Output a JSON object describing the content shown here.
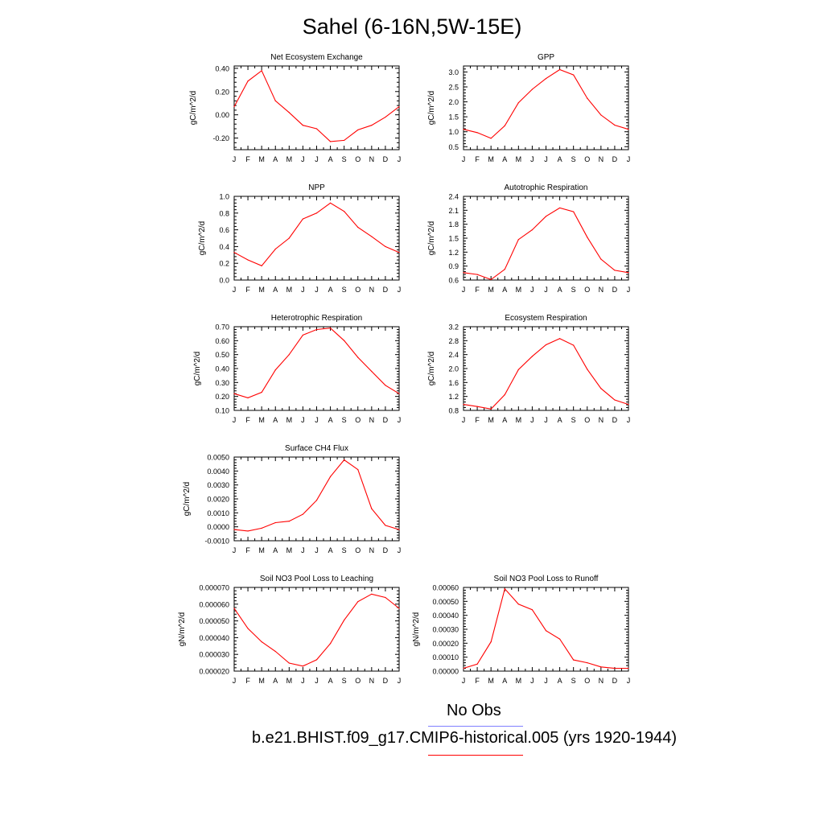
{
  "title": "Sahel (6-16N,5W-15E)",
  "legend": [
    {
      "label": "No Obs",
      "color": "#8080ff"
    },
    {
      "label": "b.e21.BHIST.f09_g17.CMIP6-historical.005 (yrs 1920-1944)",
      "color": "#ff0000"
    }
  ],
  "series_color": "#ff0000",
  "month_ticks": [
    "J",
    "F",
    "M",
    "A",
    "M",
    "J",
    "J",
    "A",
    "S",
    "O",
    "N",
    "D",
    "J"
  ],
  "chart_data": [
    {
      "type": "line",
      "title": "Net Ecosystem Exchange",
      "ylabel": "gC/m^2/d",
      "ylim": [
        -0.3,
        0.42
      ],
      "yticks": [
        -0.2,
        0,
        0.2,
        0.4
      ],
      "ytick_labels": [
        "-0.20",
        "0.00",
        "0.20",
        "0.40"
      ],
      "values": [
        0.07,
        0.29,
        0.38,
        0.12,
        0.02,
        -0.09,
        -0.12,
        -0.23,
        -0.22,
        -0.13,
        -0.09,
        -0.02,
        0.07
      ]
    },
    {
      "type": "line",
      "title": "GPP",
      "ylabel": "gC/m^2/d",
      "ylim": [
        0.4,
        3.2
      ],
      "yticks": [
        0.5,
        1.0,
        1.5,
        2.0,
        2.5,
        3.0
      ],
      "ytick_labels": [
        "0.5",
        "1.0",
        "1.5",
        "2.0",
        "2.5",
        "3.0"
      ],
      "values": [
        1.08,
        0.97,
        0.78,
        1.2,
        1.97,
        2.42,
        2.78,
        3.08,
        2.9,
        2.12,
        1.56,
        1.22,
        1.08
      ]
    },
    {
      "type": "line",
      "title": "NPP",
      "ylabel": "gC/m^2/d",
      "ylim": [
        0,
        1.0
      ],
      "yticks": [
        0,
        0.2,
        0.4,
        0.6,
        0.8,
        1.0
      ],
      "ytick_labels": [
        "0.0",
        "0.2",
        "0.4",
        "0.6",
        "0.8",
        "1.0"
      ],
      "values": [
        0.33,
        0.24,
        0.17,
        0.37,
        0.5,
        0.73,
        0.8,
        0.92,
        0.82,
        0.63,
        0.52,
        0.4,
        0.33
      ]
    },
    {
      "type": "line",
      "title": "Autotrophic Respiration",
      "ylabel": "gC/m^2/d",
      "ylim": [
        0.6,
        2.4
      ],
      "yticks": [
        0.6,
        0.9,
        1.2,
        1.5,
        1.8,
        2.1,
        2.4
      ],
      "ytick_labels": [
        "0.6",
        "0.9",
        "1.2",
        "1.5",
        "1.8",
        "2.1",
        "2.4"
      ],
      "values": [
        0.76,
        0.72,
        0.61,
        0.83,
        1.47,
        1.68,
        1.97,
        2.15,
        2.07,
        1.52,
        1.05,
        0.81,
        0.76
      ]
    },
    {
      "type": "line",
      "title": "Heterotrophic Respiration",
      "ylabel": "gC/m^2/d",
      "ylim": [
        0.1,
        0.7
      ],
      "yticks": [
        0.1,
        0.2,
        0.3,
        0.4,
        0.5,
        0.6,
        0.7
      ],
      "ytick_labels": [
        "0.10",
        "0.20",
        "0.30",
        "0.40",
        "0.50",
        "0.60",
        "0.70"
      ],
      "values": [
        0.22,
        0.19,
        0.23,
        0.39,
        0.5,
        0.64,
        0.68,
        0.69,
        0.6,
        0.48,
        0.38,
        0.28,
        0.22
      ]
    },
    {
      "type": "line",
      "title": "Ecosystem Respiration",
      "ylabel": "gC/m^2/d",
      "ylim": [
        0.8,
        3.2
      ],
      "yticks": [
        0.8,
        1.2,
        1.6,
        2.0,
        2.4,
        2.8,
        3.2
      ],
      "ytick_labels": [
        "0.8",
        "1.2",
        "1.6",
        "2.0",
        "2.4",
        "2.8",
        "3.2"
      ],
      "values": [
        0.97,
        0.91,
        0.84,
        1.25,
        1.97,
        2.35,
        2.68,
        2.86,
        2.67,
        1.98,
        1.43,
        1.1,
        0.97
      ]
    },
    {
      "type": "line",
      "title": "Surface CH4 Flux",
      "ylabel": "gC/m^2/d",
      "ylim": [
        -0.001,
        0.005
      ],
      "yticks": [
        -0.001,
        0,
        0.001,
        0.002,
        0.003,
        0.004,
        0.005
      ],
      "ytick_labels": [
        "-0.0010",
        "0.0000",
        "0.0010",
        "0.0020",
        "0.0030",
        "0.0040",
        "0.0050"
      ],
      "values": [
        -0.0002,
        -0.0003,
        -0.0001,
        0.0003,
        0.0004,
        0.0009,
        0.0019,
        0.0036,
        0.0048,
        0.0041,
        0.0013,
        0.0001,
        -0.0002
      ]
    },
    {
      "type": "line",
      "title": "Soil NO3 Pool Loss to Leaching",
      "ylabel": "gN/m^2/d",
      "ylim": [
        2e-05,
        7e-05
      ],
      "yticks": [
        2e-05,
        3e-05,
        4e-05,
        5e-05,
        6e-05,
        7e-05
      ],
      "ytick_labels": [
        "0.000020",
        "0.000030",
        "0.000040",
        "0.000050",
        "0.000060",
        "0.000070"
      ],
      "values": [
        5.75e-05,
        4.55e-05,
        3.75e-05,
        3.18e-05,
        2.48e-05,
        2.3e-05,
        2.68e-05,
        3.65e-05,
        5.05e-05,
        6.15e-05,
        6.6e-05,
        6.4e-05,
        5.75e-05
      ]
    },
    {
      "type": "line",
      "title": "Soil NO3 Pool Loss to Runoff",
      "ylabel": "gN/m^2/d",
      "ylim": [
        0,
        0.0006
      ],
      "yticks": [
        0,
        0.0001,
        0.0002,
        0.0003,
        0.0004,
        0.0005,
        0.0006
      ],
      "ytick_labels": [
        "0.00000",
        "0.00010",
        "0.00020",
        "0.00030",
        "0.00040",
        "0.00050",
        "0.00060"
      ],
      "values": [
        2e-05,
        5e-05,
        0.00021,
        0.00059,
        0.00048,
        0.00044,
        0.00029,
        0.00023,
        8e-05,
        6e-05,
        3e-05,
        2e-05,
        2e-05
      ]
    }
  ]
}
